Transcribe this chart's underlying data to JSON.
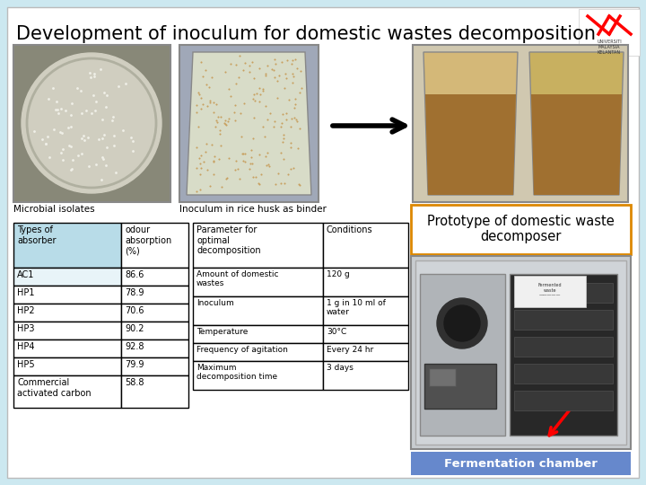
{
  "title": "Development of inoculum for domestic wastes decomposition",
  "title_fontsize": 15,
  "bg_color": "#cce8f0",
  "slide_bg": "#ffffff",
  "label_microbial": "Microbial isolates",
  "label_inoculum": "Inoculum in rice husk as binder",
  "table1_headers": [
    "Types of\nabsorber",
    "odour\nabsorption\n(%)"
  ],
  "table1_rows": [
    [
      "AC1",
      "86.6"
    ],
    [
      "HP1",
      "78.9"
    ],
    [
      "HP2",
      "70.6"
    ],
    [
      "HP3",
      "90.2"
    ],
    [
      "HP4",
      "92.8"
    ],
    [
      "HP5",
      "79.9"
    ],
    [
      "Commercial\nactivated carbon",
      "58.8"
    ]
  ],
  "table1_header_bg": "#b8dce8",
  "table2_headers": [
    "Parameter for\noptimal\ndecomposition",
    "Conditions"
  ],
  "table2_rows": [
    [
      "Amount of domestic\nwastes",
      "120 g"
    ],
    [
      "Inoculum",
      "1 g in 10 ml of\nwater"
    ],
    [
      "Temperature",
      "30°C"
    ],
    [
      "Frequency of agitation",
      "Every 24 hr"
    ],
    [
      "Maximum\ndecomposition time",
      "3 days"
    ]
  ],
  "prototype_label": "Prototype of domestic waste\ndecomposer",
  "fermentation_label": "Fermentation chamber",
  "fermentation_label_bg": "#6688cc",
  "arrow_color": "#000000",
  "photo1_bg": "#c8c8b0",
  "photo2_bg": "#b8c4a8",
  "photo3_bg": "#d8c8a0"
}
